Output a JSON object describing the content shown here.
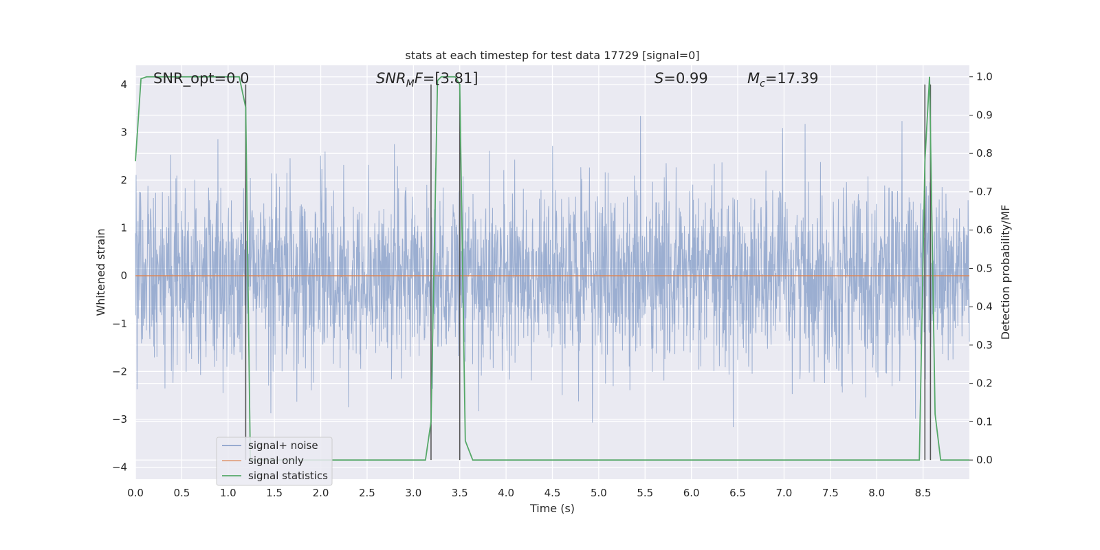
{
  "chart_data": {
    "type": "line",
    "title": "stats at each timestep for test data 17729 [signal=0]",
    "xlabel": "Time (s)",
    "ylabel_left": "Whitened strain",
    "ylabel_right": "Detection probability/MF",
    "xlim": [
      0.0,
      9.0
    ],
    "ylim_left": [
      -4.25,
      4.4
    ],
    "ylim_right": [
      -0.05,
      1.03
    ],
    "x_ticks": [
      "0.0",
      "0.5",
      "1.0",
      "1.5",
      "2.0",
      "2.5",
      "3.0",
      "3.5",
      "4.0",
      "4.5",
      "5.0",
      "5.5",
      "6.0",
      "6.5",
      "7.0",
      "7.5",
      "8.0",
      "8.5"
    ],
    "y_ticks_left": [
      "4",
      "3",
      "2",
      "1",
      "0",
      "−1",
      "−2",
      "−3",
      "−4"
    ],
    "y_ticks_right": [
      "1.0",
      "0.9",
      "0.8",
      "0.7",
      "0.6",
      "0.5",
      "0.4",
      "0.3",
      "0.2",
      "0.1",
      "0.0"
    ],
    "grid": true,
    "background": "#eaeaf2",
    "annotations": [
      {
        "key": "snr_opt",
        "text": "SNR_opt=0.0"
      },
      {
        "key": "snr_mf",
        "text_main": "SNR",
        "text_sub": "M",
        "text_rest": "F=[3.81]"
      },
      {
        "key": "s_stat",
        "text_main": "S",
        "text_rest": "=0.99"
      },
      {
        "key": "mc",
        "text_main": "M",
        "text_sub": "c",
        "text_rest": "=17.39"
      }
    ],
    "series": [
      {
        "name": "signal+ noise",
        "color": "#4c72b0",
        "kind": "noise",
        "amplitude_core": 1.7,
        "amplitude_peak": 3.7,
        "x_range": [
          0.0,
          9.0
        ]
      },
      {
        "name": "signal only",
        "color": "#dd8452",
        "x": [
          0.0,
          9.0
        ],
        "y": [
          0.0,
          0.0
        ]
      },
      {
        "name": "signal statistics",
        "color": "#55a868",
        "axis": "right",
        "x": [
          0.0,
          0.06,
          0.12,
          0.4,
          0.8,
          1.12,
          1.19,
          1.24,
          1.3,
          2.0,
          3.0,
          3.13,
          3.19,
          3.26,
          3.3,
          3.45,
          3.5,
          3.56,
          3.64,
          4.0,
          6.0,
          8.0,
          8.46,
          8.52,
          8.57,
          8.63,
          8.69,
          9.0
        ],
        "y": [
          0.78,
          0.995,
          1.0,
          1.0,
          1.0,
          1.0,
          0.92,
          0.0,
          0.0,
          0.0,
          0.0,
          0.0,
          0.1,
          0.99,
          1.0,
          1.0,
          0.98,
          0.05,
          0.0,
          0.0,
          0.0,
          0.0,
          0.0,
          0.78,
          1.0,
          0.12,
          0.0,
          0.0
        ]
      }
    ],
    "vertical_markers": {
      "color": "#555555",
      "x": [
        1.19,
        3.19,
        3.5,
        8.52,
        8.58
      ],
      "y_top": 4.0,
      "y_bottom": -3.85
    },
    "legend": {
      "placement": "lower-left",
      "entries": [
        "signal+ noise",
        "signal only",
        "signal statistics"
      ]
    }
  }
}
